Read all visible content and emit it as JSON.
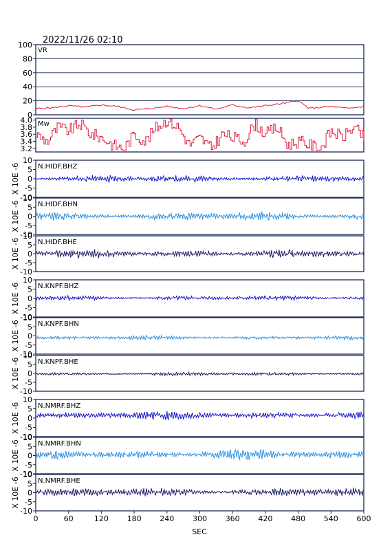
{
  "header": {
    "date_time": "2022/11/26 02:10"
  },
  "colors": {
    "frame": "#1a2a55",
    "grid": "#1a2a55",
    "vr": "#e0193f",
    "mw": "#e0193f",
    "bhz": "#1414c8",
    "bhn": "#2a8ee0",
    "bhe": "#1a1a66"
  },
  "chart_data": {
    "type": "line",
    "x_axis": {
      "label": "SEC",
      "range": [
        0,
        600
      ],
      "ticks": [
        0,
        60,
        120,
        180,
        240,
        300,
        360,
        420,
        480,
        540,
        600
      ]
    },
    "vr": {
      "label": "VR",
      "ylim": [
        0,
        100
      ],
      "yticks": [
        0,
        20,
        40,
        60,
        80,
        100
      ],
      "grid": true,
      "points": [
        [
          0,
          9
        ],
        [
          30,
          10
        ],
        [
          60,
          13
        ],
        [
          90,
          11
        ],
        [
          120,
          14
        ],
        [
          150,
          12
        ],
        [
          180,
          7
        ],
        [
          210,
          9
        ],
        [
          240,
          12
        ],
        [
          270,
          9
        ],
        [
          300,
          13
        ],
        [
          330,
          8
        ],
        [
          360,
          14
        ],
        [
          390,
          10
        ],
        [
          420,
          13
        ],
        [
          450,
          16
        ],
        [
          480,
          20
        ],
        [
          500,
          9
        ],
        [
          540,
          12
        ],
        [
          570,
          9
        ],
        [
          600,
          12
        ]
      ]
    },
    "mw": {
      "label": "Mw",
      "ylim": [
        3.1,
        4.05
      ],
      "yticks": [
        3.2,
        3.4,
        3.6,
        3.8,
        4.0
      ],
      "points": [
        [
          0,
          3.6
        ],
        [
          20,
          3.4
        ],
        [
          40,
          3.8
        ],
        [
          60,
          3.7
        ],
        [
          80,
          3.9
        ],
        [
          100,
          3.6
        ],
        [
          120,
          3.5
        ],
        [
          140,
          3.3
        ],
        [
          160,
          3.2
        ],
        [
          180,
          3.6
        ],
        [
          200,
          3.4
        ],
        [
          220,
          3.8
        ],
        [
          240,
          4.0
        ],
        [
          260,
          3.8
        ],
        [
          280,
          3.3
        ],
        [
          300,
          3.5
        ],
        [
          320,
          3.2
        ],
        [
          340,
          3.6
        ],
        [
          360,
          3.5
        ],
        [
          380,
          3.4
        ],
        [
          400,
          3.9
        ],
        [
          420,
          3.6
        ],
        [
          440,
          3.8
        ],
        [
          460,
          3.3
        ],
        [
          480,
          3.4
        ],
        [
          500,
          3.3
        ],
        [
          520,
          3.2
        ],
        [
          540,
          3.7
        ],
        [
          560,
          3.5
        ],
        [
          580,
          3.8
        ],
        [
          600,
          3.5
        ]
      ]
    },
    "waveform_axis": {
      "label": "X 10E -6",
      "ylim": [
        -10,
        10
      ],
      "yticks": [
        -10,
        -5,
        0,
        5,
        10
      ]
    },
    "series": [
      {
        "name": "N.HIDF.BHZ",
        "component": "bhz",
        "amplitude": 1.2,
        "offset": 0.0,
        "seed": 11
      },
      {
        "name": "N.HIDF.BHN",
        "component": "bhn",
        "amplitude": 1.5,
        "offset": 0.0,
        "seed": 23
      },
      {
        "name": "N.HIDF.BHE",
        "component": "bhe",
        "amplitude": 1.4,
        "offset": 0.0,
        "seed": 37
      },
      {
        "name": "N.KNPF.BHZ",
        "component": "bhz",
        "amplitude": 0.8,
        "offset": 0.2,
        "seed": 41
      },
      {
        "name": "N.KNPF.BHN",
        "component": "bhn",
        "amplitude": 0.7,
        "offset": -1.0,
        "seed": 53
      },
      {
        "name": "N.KNPF.BHE",
        "component": "bhe",
        "amplitude": 0.6,
        "offset": -0.3,
        "seed": 67
      },
      {
        "name": "N.NMRF.BHZ",
        "component": "bhz",
        "amplitude": 1.4,
        "offset": 1.5,
        "seed": 71
      },
      {
        "name": "N.NMRF.BHN",
        "component": "bhn",
        "amplitude": 1.6,
        "offset": 0.5,
        "seed": 83
      },
      {
        "name": "N.NMRF.BHE",
        "component": "bhe",
        "amplitude": 1.4,
        "offset": 0.3,
        "seed": 97
      }
    ]
  }
}
